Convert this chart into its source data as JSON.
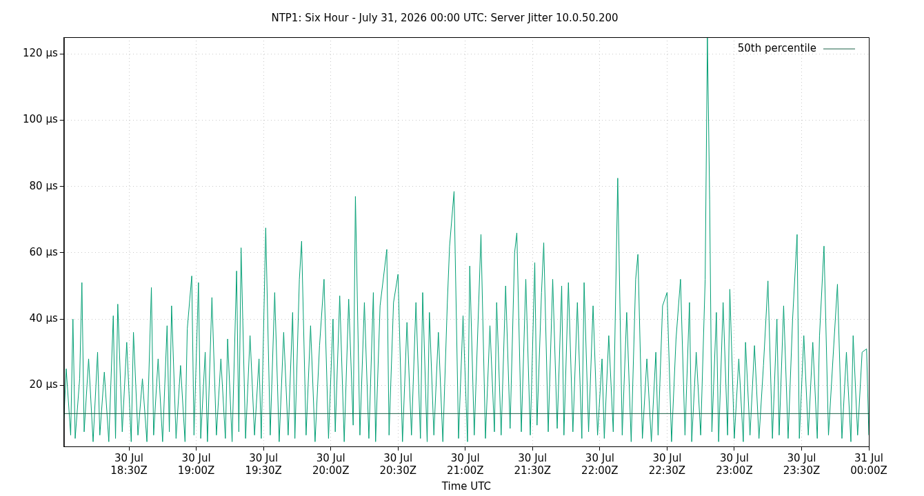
{
  "chart_data": {
    "type": "line",
    "title": "NTP1: Six Hour - July 31, 2026 00:00 UTC: Server Jitter 10.0.50.200",
    "xlabel": "Time UTC",
    "xlim": [
      "2026-07-30T18:01",
      "2026-07-31T00:00"
    ],
    "ylim": [
      1.6,
      125
    ],
    "xticks": [
      {
        "value": "2026-07-30T18:30",
        "label": "30 Jul\n18:30Z"
      },
      {
        "value": "2026-07-30T19:00",
        "label": "30 Jul\n19:00Z"
      },
      {
        "value": "2026-07-30T19:30",
        "label": "30 Jul\n19:30Z"
      },
      {
        "value": "2026-07-30T20:00",
        "label": "30 Jul\n20:00Z"
      },
      {
        "value": "2026-07-30T20:30",
        "label": "30 Jul\n20:30Z"
      },
      {
        "value": "2026-07-30T21:00",
        "label": "30 Jul\n21:00Z"
      },
      {
        "value": "2026-07-30T21:30",
        "label": "30 Jul\n21:30Z"
      },
      {
        "value": "2026-07-30T22:00",
        "label": "30 Jul\n22:00Z"
      },
      {
        "value": "2026-07-30T22:30",
        "label": "30 Jul\n22:30Z"
      },
      {
        "value": "2026-07-30T23:00",
        "label": "30 Jul\n23:00Z"
      },
      {
        "value": "2026-07-30T23:30",
        "label": "30 Jul\n23:30Z"
      },
      {
        "value": "2026-07-31T00:00",
        "label": "31 Jul\n00:00Z"
      }
    ],
    "yticks": [
      {
        "value": 20,
        "label": "20 µs"
      },
      {
        "value": 40,
        "label": "40 µs"
      },
      {
        "value": 60,
        "label": "60 µs"
      },
      {
        "value": 80,
        "label": "80 µs"
      },
      {
        "value": 100,
        "label": "100 µs"
      },
      {
        "value": 120,
        "label": "120 µs"
      }
    ],
    "grid": true,
    "legend": "top right",
    "marker": "none",
    "series": [
      {
        "name": "50th percentile",
        "type": "line",
        "color": "#1b5e45",
        "x": [
          "2026-07-30T18:01",
          "2026-07-31T00:00"
        ],
        "values": [
          11.5,
          11.5
        ]
      },
      {
        "type": "line",
        "color": "#009e73",
        "x": [
          "2026-07-30T18:01",
          "2026-07-30T18:02",
          "2026-07-30T18:04",
          "2026-07-30T18:05",
          "2026-07-30T18:06",
          "2026-07-30T18:08",
          "2026-07-30T18:09",
          "2026-07-30T18:10",
          "2026-07-30T18:12",
          "2026-07-30T18:14",
          "2026-07-30T18:16",
          "2026-07-30T18:17",
          "2026-07-30T18:19",
          "2026-07-30T18:21",
          "2026-07-30T18:23",
          "2026-07-30T18:24",
          "2026-07-30T18:25",
          "2026-07-30T18:27",
          "2026-07-30T18:29",
          "2026-07-30T18:31",
          "2026-07-30T18:32",
          "2026-07-30T18:34",
          "2026-07-30T18:36",
          "2026-07-30T18:38",
          "2026-07-30T18:40",
          "2026-07-30T18:41",
          "2026-07-30T18:43",
          "2026-07-30T18:45",
          "2026-07-30T18:47",
          "2026-07-30T18:48",
          "2026-07-30T18:49",
          "2026-07-30T18:51",
          "2026-07-30T18:53",
          "2026-07-30T18:55",
          "2026-07-30T18:56",
          "2026-07-30T18:58",
          "2026-07-30T18:59",
          "2026-07-30T19:01",
          "2026-07-30T19:02",
          "2026-07-30T19:04",
          "2026-07-30T19:05",
          "2026-07-30T19:07",
          "2026-07-30T19:09",
          "2026-07-30T19:11",
          "2026-07-30T19:13",
          "2026-07-30T19:14",
          "2026-07-30T19:16",
          "2026-07-30T19:18",
          "2026-07-30T19:19",
          "2026-07-30T19:20",
          "2026-07-30T19:22",
          "2026-07-30T19:24",
          "2026-07-30T19:26",
          "2026-07-30T19:28",
          "2026-07-30T19:29",
          "2026-07-30T19:31",
          "2026-07-30T19:33",
          "2026-07-30T19:35",
          "2026-07-30T19:37",
          "2026-07-30T19:39",
          "2026-07-30T19:41",
          "2026-07-30T19:43",
          "2026-07-30T19:44",
          "2026-07-30T19:46",
          "2026-07-30T19:47",
          "2026-07-30T19:49",
          "2026-07-30T19:51",
          "2026-07-30T19:53",
          "2026-07-30T19:55",
          "2026-07-30T19:57",
          "2026-07-30T19:59",
          "2026-07-30T20:01",
          "2026-07-30T20:02",
          "2026-07-30T20:04",
          "2026-07-30T20:06",
          "2026-07-30T20:08",
          "2026-07-30T20:10",
          "2026-07-30T20:11",
          "2026-07-30T20:13",
          "2026-07-30T20:15",
          "2026-07-30T20:17",
          "2026-07-30T20:19",
          "2026-07-30T20:20",
          "2026-07-30T20:22",
          "2026-07-30T20:25",
          "2026-07-30T20:26",
          "2026-07-30T20:28",
          "2026-07-30T20:30",
          "2026-07-30T20:32",
          "2026-07-30T20:34",
          "2026-07-30T20:36",
          "2026-07-30T20:38",
          "2026-07-30T20:40",
          "2026-07-30T20:41",
          "2026-07-30T20:43",
          "2026-07-30T20:44",
          "2026-07-30T20:46",
          "2026-07-30T20:48",
          "2026-07-30T20:50",
          "2026-07-30T20:52",
          "2026-07-30T20:53",
          "2026-07-30T20:55",
          "2026-07-30T20:57",
          "2026-07-30T20:59",
          "2026-07-30T21:01",
          "2026-07-30T21:02",
          "2026-07-30T21:04",
          "2026-07-30T21:06",
          "2026-07-30T21:07",
          "2026-07-30T21:09",
          "2026-07-30T21:11",
          "2026-07-30T21:13",
          "2026-07-30T21:14",
          "2026-07-30T21:16",
          "2026-07-30T21:18",
          "2026-07-30T21:20",
          "2026-07-30T21:22",
          "2026-07-30T21:23",
          "2026-07-30T21:25",
          "2026-07-30T21:27",
          "2026-07-30T21:29",
          "2026-07-30T21:31",
          "2026-07-30T21:32",
          "2026-07-30T21:34",
          "2026-07-30T21:35",
          "2026-07-30T21:37",
          "2026-07-30T21:39",
          "2026-07-30T21:41",
          "2026-07-30T21:43",
          "2026-07-30T21:44",
          "2026-07-30T21:46",
          "2026-07-30T21:48",
          "2026-07-30T21:50",
          "2026-07-30T21:52",
          "2026-07-30T21:53",
          "2026-07-30T21:55",
          "2026-07-30T21:57",
          "2026-07-30T21:59",
          "2026-07-30T22:01",
          "2026-07-30T22:02",
          "2026-07-30T22:04",
          "2026-07-30T22:06",
          "2026-07-30T22:08",
          "2026-07-30T22:10",
          "2026-07-30T22:12",
          "2026-07-30T22:14",
          "2026-07-30T22:16",
          "2026-07-30T22:17",
          "2026-07-30T22:19",
          "2026-07-30T22:21",
          "2026-07-30T22:23",
          "2026-07-30T22:25",
          "2026-07-30T22:26",
          "2026-07-30T22:28",
          "2026-07-30T22:30",
          "2026-07-30T22:32",
          "2026-07-30T22:34",
          "2026-07-30T22:36",
          "2026-07-30T22:38",
          "2026-07-30T22:40",
          "2026-07-30T22:41",
          "2026-07-30T22:43",
          "2026-07-30T22:45",
          "2026-07-30T22:47",
          "2026-07-30T22:48",
          "2026-07-30T22:49",
          "2026-07-30T22:50",
          "2026-07-30T22:52",
          "2026-07-30T22:53",
          "2026-07-30T22:55",
          "2026-07-30T22:57",
          "2026-07-30T22:58",
          "2026-07-30T23:00",
          "2026-07-30T23:02",
          "2026-07-30T23:04",
          "2026-07-30T23:05",
          "2026-07-30T23:07",
          "2026-07-30T23:09",
          "2026-07-30T23:11",
          "2026-07-30T23:13",
          "2026-07-30T23:15",
          "2026-07-30T23:17",
          "2026-07-30T23:19",
          "2026-07-30T23:20",
          "2026-07-30T23:22",
          "2026-07-30T23:24",
          "2026-07-30T23:26",
          "2026-07-30T23:28",
          "2026-07-30T23:29",
          "2026-07-30T23:31",
          "2026-07-30T23:33",
          "2026-07-30T23:35",
          "2026-07-30T23:37",
          "2026-07-30T23:38",
          "2026-07-30T23:40",
          "2026-07-30T23:42",
          "2026-07-30T23:44",
          "2026-07-30T23:46",
          "2026-07-30T23:48",
          "2026-07-30T23:50",
          "2026-07-30T23:52",
          "2026-07-30T23:53",
          "2026-07-30T23:55",
          "2026-07-30T23:57",
          "2026-07-30T23:59",
          "2026-07-31T00:00"
        ],
        "values": [
          10,
          25,
          5,
          40,
          4,
          22,
          51,
          6,
          28,
          3,
          30,
          5,
          24,
          3,
          41,
          4,
          44.5,
          6,
          33,
          3,
          36,
          5,
          22,
          3,
          49.5,
          5,
          28,
          3,
          38,
          6,
          44,
          4,
          26,
          3,
          37,
          53,
          5,
          51,
          4,
          30,
          3,
          46.5,
          5,
          28,
          4,
          34,
          3,
          54.5,
          6,
          61.5,
          4,
          35,
          5,
          28,
          4,
          67.5,
          5,
          48,
          3,
          36,
          5,
          42,
          4,
          52,
          63.5,
          5,
          38,
          3,
          32,
          52,
          4,
          40,
          6,
          47,
          3,
          46,
          8,
          77,
          5,
          45,
          4,
          48,
          3,
          44,
          61,
          5,
          45,
          53.5,
          3,
          39,
          5,
          45,
          4,
          48,
          3,
          42,
          5,
          36,
          3,
          45,
          62,
          78.5,
          4,
          41,
          3,
          56,
          5,
          45,
          65.5,
          4,
          38,
          6,
          45,
          5,
          50,
          7,
          60,
          66,
          6,
          52,
          5,
          57,
          8,
          48,
          63,
          6,
          52,
          7,
          50,
          5,
          51,
          6,
          45,
          4,
          51,
          6,
          44,
          5,
          28,
          4,
          35,
          6,
          82.5,
          5,
          42,
          3,
          52,
          59.5,
          4,
          28,
          3,
          30,
          5,
          44,
          48,
          3,
          34,
          52,
          5,
          45,
          3,
          30,
          5,
          52,
          125,
          76,
          6,
          42,
          3,
          45,
          5,
          49,
          4,
          28,
          3,
          33,
          5,
          32,
          4,
          26,
          51.5,
          4,
          40,
          5,
          44,
          4,
          40,
          65.5,
          4,
          35,
          5,
          33,
          4,
          35,
          62,
          5,
          28,
          50.5,
          4,
          30,
          3,
          35,
          5,
          30,
          31,
          5
        ]
      }
    ]
  }
}
